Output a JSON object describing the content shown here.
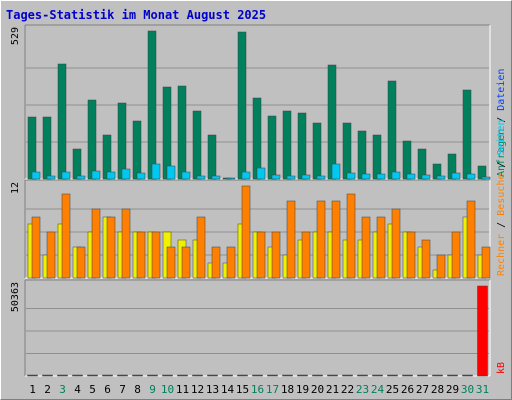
{
  "title": "Tages-Statistik im Monat August 2025",
  "colors": {
    "bg": "#c0c0c0",
    "title": "#0000cc",
    "gridline": "#8f8f8f",
    "anfragen": "#00805c",
    "dateien": "#00c8f0",
    "seiten": "#f0f000",
    "besuche": "#ff8000",
    "rechner": "#ff8000",
    "kb": "#ff0000",
    "day_label": "#000000",
    "weekend_label": "#00805c",
    "slash": "#000000"
  },
  "chart_data": [
    {
      "type": "bar",
      "ylim": [
        0,
        529
      ],
      "max_label": "529",
      "legend_right": [
        {
          "text": "Anfragen",
          "color": "#00805c"
        },
        {
          "text": " / ",
          "color": "#000000"
        },
        {
          "text": "Dateien",
          "color": "#0040ff"
        }
      ],
      "series": [
        {
          "name": "Anfragen",
          "color": "#00805c",
          "values": [
            222,
            222,
            411,
            107,
            284,
            158,
            272,
            209,
            529,
            328,
            333,
            243,
            157,
            5,
            524,
            291,
            226,
            242,
            236,
            199,
            408,
            200,
            170,
            157,
            349,
            135,
            108,
            53,
            90,
            319,
            46
          ]
        },
        {
          "name": "Dateien",
          "color": "#00c8f0",
          "values": [
            25,
            12,
            25,
            12,
            30,
            25,
            35,
            20,
            52,
            45,
            25,
            12,
            10,
            4,
            25,
            40,
            14,
            12,
            14,
            12,
            52,
            20,
            18,
            18,
            25,
            18,
            16,
            10,
            20,
            18,
            8
          ]
        }
      ]
    },
    {
      "type": "bar",
      "ylim": [
        0,
        12
      ],
      "max_label": "12",
      "legend_right": [
        {
          "text": "Rechner",
          "color": "#ff8000"
        },
        {
          "text": " / ",
          "color": "#000000"
        },
        {
          "text": "Besuche",
          "color": "#ff8000"
        },
        {
          "text": " / ",
          "color": "#000000"
        },
        {
          "text": "Seiten",
          "color": "#00c8f0"
        }
      ],
      "series": [
        {
          "name": "Seiten",
          "color": "#f0f000",
          "values": [
            7,
            3,
            7,
            4,
            6,
            8,
            6,
            6,
            6,
            6,
            5,
            5,
            2,
            2,
            7,
            6,
            4,
            3,
            5,
            6,
            6,
            5,
            5,
            6,
            7,
            6,
            4,
            1,
            3,
            8,
            3
          ]
        },
        {
          "name": "Besuche",
          "color": "#ff8000",
          "values": [
            8,
            6,
            11,
            4,
            9,
            8,
            9,
            6,
            6,
            4,
            4,
            8,
            4,
            4,
            12,
            6,
            6,
            10,
            6,
            10,
            10,
            11,
            8,
            8,
            9,
            6,
            5,
            3,
            6,
            10,
            4
          ]
        }
      ]
    },
    {
      "type": "bar",
      "ylim": [
        0,
        50363
      ],
      "max_label": "50363",
      "legend_right": [
        {
          "text": "kB",
          "color": "#ff0000"
        }
      ],
      "series": [
        {
          "name": "kB",
          "color": "#ff0000",
          "values": [
            150,
            150,
            250,
            100,
            200,
            150,
            200,
            150,
            300,
            250,
            250,
            180,
            120,
            20,
            300,
            200,
            170,
            170,
            170,
            150,
            280,
            150,
            130,
            130,
            220,
            120,
            100,
            70,
            90,
            250,
            50363
          ]
        }
      ]
    }
  ],
  "days": [
    {
      "label": "1",
      "weekend": false
    },
    {
      "label": "2",
      "weekend": false
    },
    {
      "label": "3",
      "weekend": true
    },
    {
      "label": "4",
      "weekend": false
    },
    {
      "label": "5",
      "weekend": false
    },
    {
      "label": "6",
      "weekend": false
    },
    {
      "label": "7",
      "weekend": false
    },
    {
      "label": "8",
      "weekend": false
    },
    {
      "label": "9",
      "weekend": true
    },
    {
      "label": "10",
      "weekend": true
    },
    {
      "label": "11",
      "weekend": false
    },
    {
      "label": "12",
      "weekend": false
    },
    {
      "label": "13",
      "weekend": false
    },
    {
      "label": "14",
      "weekend": false
    },
    {
      "label": "15",
      "weekend": false
    },
    {
      "label": "16",
      "weekend": true
    },
    {
      "label": "17",
      "weekend": true
    },
    {
      "label": "18",
      "weekend": false
    },
    {
      "label": "19",
      "weekend": false
    },
    {
      "label": "20",
      "weekend": false
    },
    {
      "label": "21",
      "weekend": false
    },
    {
      "label": "22",
      "weekend": false
    },
    {
      "label": "23",
      "weekend": true
    },
    {
      "label": "24",
      "weekend": true
    },
    {
      "label": "25",
      "weekend": false
    },
    {
      "label": "26",
      "weekend": false
    },
    {
      "label": "27",
      "weekend": false
    },
    {
      "label": "28",
      "weekend": false
    },
    {
      "label": "29",
      "weekend": false
    },
    {
      "label": "30",
      "weekend": true
    },
    {
      "label": "31",
      "weekend": true
    }
  ]
}
